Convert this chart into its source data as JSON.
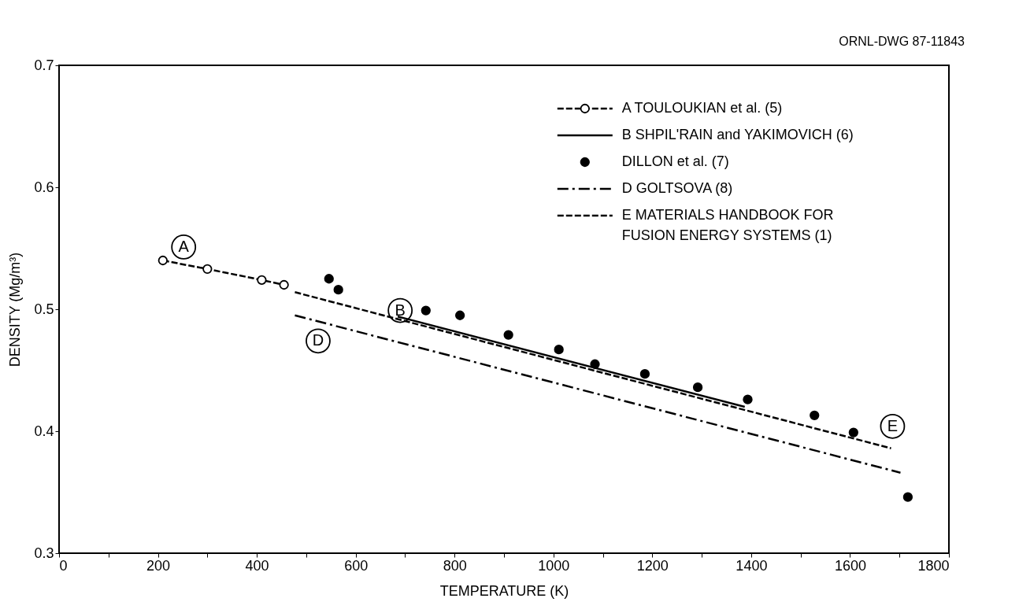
{
  "chart_data": {
    "type": "line",
    "xlabel": "TEMPERATURE (K)",
    "ylabel": "DENSITY (Mg/m³)",
    "xlim": [
      0,
      1800
    ],
    "ylim": [
      0.3,
      0.7
    ],
    "xticks": [
      0,
      {
        "value": 100,
        "label": null
      },
      200,
      {
        "value": 300,
        "label": null
      },
      400,
      {
        "value": 500,
        "label": null
      },
      600,
      {
        "value": 700,
        "label": null
      },
      800,
      {
        "value": 900,
        "label": null
      },
      1000,
      {
        "value": 1100,
        "label": null
      },
      1200,
      {
        "value": 1300,
        "label": null
      },
      1400,
      {
        "value": 1500,
        "label": null
      },
      1600,
      {
        "value": 1700,
        "label": null
      },
      1800
    ],
    "yticks": [
      0.3,
      0.4,
      0.5,
      0.6,
      0.7
    ],
    "grid": false,
    "legend": "top right",
    "series": [
      {
        "name": "A TOULOUKIAN et al. (5)",
        "line_style": "dashed",
        "marker": "circle",
        "color": "#000000",
        "x": [
          210,
          300,
          410,
          455
        ],
        "values": [
          0.54,
          0.533,
          0.524,
          0.52
        ]
      },
      {
        "name": "B SHPIL'RAIN and YAKIMOVICH (6)",
        "line_style": "solid",
        "marker": "none",
        "color": "#000000",
        "x": [
          685,
          1387
        ],
        "values": [
          0.494,
          0.42
        ]
      },
      {
        "name": "DILLON et al. (7)",
        "type": "scatter",
        "marker": "circle",
        "color": "#000000",
        "x": [
          546,
          565,
          742,
          811,
          909,
          1011,
          1084,
          1185,
          1292,
          1393,
          1528,
          1607,
          1717
        ],
        "values": [
          0.525,
          0.516,
          0.499,
          0.495,
          0.479,
          0.467,
          0.455,
          0.447,
          0.436,
          0.426,
          0.413,
          0.399,
          0.346
        ]
      },
      {
        "name": "D GOLTSOVA (8)",
        "line_style": "dashdot",
        "marker": "none",
        "color": "#000000",
        "x": [
          477,
          1702
        ],
        "values": [
          0.495,
          0.366
        ]
      },
      {
        "name": "E MATERIALS HANDBOOK FOR\nFUSION ENERGY SYSTEMS (1)",
        "line_style": "dashed",
        "marker": "none",
        "color": "#000000",
        "x": [
          477,
          1683
        ],
        "values": [
          0.514,
          0.386
        ]
      }
    ],
    "annotations": [
      "ORNL-DWG 87-11843",
      {
        "text": "A",
        "x": 252,
        "y": 0.551
      },
      {
        "text": "B",
        "x": 690,
        "y": 0.499
      },
      {
        "text": "D",
        "x": 524,
        "y": 0.474
      },
      {
        "text": "E",
        "x": 1686,
        "y": 0.404
      }
    ]
  }
}
